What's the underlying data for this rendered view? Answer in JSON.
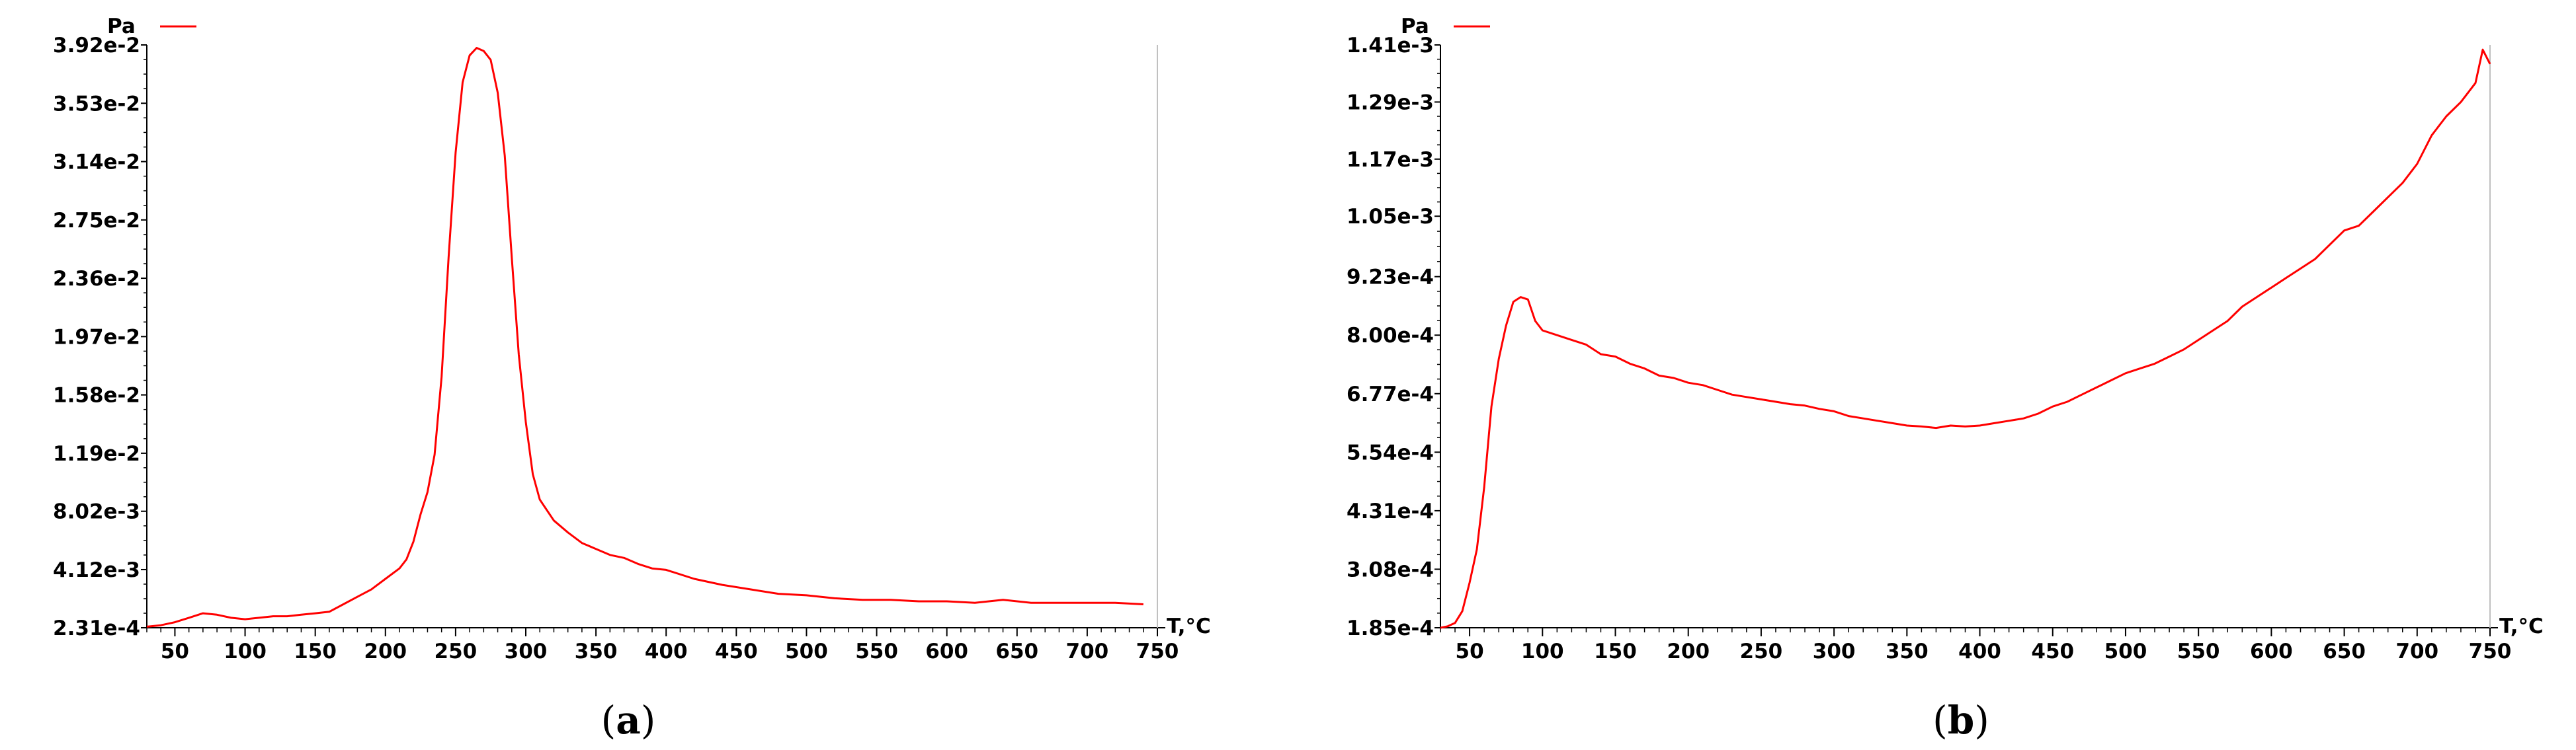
{
  "chart_data": [
    {
      "type": "line",
      "caption_open": "(",
      "caption_letter": "a",
      "caption_close": ")",
      "ylabel": "Pa",
      "xlabel": "T,°C",
      "xlim": [
        30,
        750
      ],
      "ylim": [
        0.000231,
        0.0392
      ],
      "x_ticks": [
        50,
        100,
        150,
        200,
        250,
        300,
        350,
        400,
        450,
        500,
        550,
        600,
        650,
        700,
        750
      ],
      "y_ticks": [
        0.000231,
        0.00412,
        0.00802,
        0.0119,
        0.0158,
        0.0197,
        0.0236,
        0.0275,
        0.0314,
        0.0353,
        0.0392
      ],
      "y_tick_labels": [
        "2.31e-4",
        "4.12e-3",
        "8.02e-3",
        "1.19e-2",
        "1.58e-2",
        "1.97e-2",
        "2.36e-2",
        "2.75e-2",
        "3.14e-2",
        "3.53e-2",
        "3.92e-2"
      ],
      "series": [
        {
          "color": "#ff0000",
          "x": [
            30,
            40,
            50,
            60,
            70,
            80,
            90,
            100,
            110,
            120,
            130,
            140,
            150,
            160,
            170,
            180,
            190,
            200,
            210,
            215,
            220,
            225,
            230,
            235,
            240,
            245,
            250,
            255,
            260,
            265,
            270,
            275,
            280,
            285,
            290,
            295,
            300,
            305,
            310,
            320,
            330,
            340,
            350,
            360,
            370,
            380,
            390,
            400,
            420,
            440,
            460,
            480,
            500,
            520,
            540,
            560,
            580,
            600,
            620,
            640,
            660,
            680,
            700,
            720,
            740
          ],
          "y": [
            0.0003,
            0.0004,
            0.0006,
            0.0009,
            0.0012,
            0.0011,
            0.0009,
            0.0008,
            0.0009,
            0.001,
            0.001,
            0.0011,
            0.0012,
            0.0013,
            0.0018,
            0.0023,
            0.0028,
            0.0035,
            0.0042,
            0.0048,
            0.006,
            0.0078,
            0.0093,
            0.0118,
            0.017,
            0.025,
            0.032,
            0.0367,
            0.0385,
            0.039,
            0.0388,
            0.0382,
            0.036,
            0.0318,
            0.025,
            0.0185,
            0.014,
            0.0105,
            0.0088,
            0.0074,
            0.0066,
            0.0059,
            0.0055,
            0.0051,
            0.0049,
            0.0045,
            0.0042,
            0.0041,
            0.0035,
            0.0031,
            0.0028,
            0.0025,
            0.0024,
            0.0022,
            0.0021,
            0.0021,
            0.002,
            0.002,
            0.0019,
            0.0021,
            0.0019,
            0.0019,
            0.0019,
            0.0019,
            0.0018
          ]
        }
      ]
    },
    {
      "type": "line",
      "caption_open": "(",
      "caption_letter": "b",
      "caption_close": ")",
      "ylabel": "Pa",
      "xlabel": "T,°C",
      "xlim": [
        30,
        750
      ],
      "ylim": [
        0.000185,
        0.00141
      ],
      "x_ticks": [
        50,
        100,
        150,
        200,
        250,
        300,
        350,
        400,
        450,
        500,
        550,
        600,
        650,
        700,
        750
      ],
      "y_ticks": [
        0.000185,
        0.000308,
        0.000431,
        0.000554,
        0.000677,
        0.0008,
        0.000923,
        0.00105,
        0.00117,
        0.00129,
        0.00141
      ],
      "y_tick_labels": [
        "1.85e-4",
        "3.08e-4",
        "4.31e-4",
        "5.54e-4",
        "6.77e-4",
        "8.00e-4",
        "9.23e-4",
        "1.05e-3",
        "1.17e-3",
        "1.29e-3",
        "1.41e-3"
      ],
      "series": [
        {
          "color": "#ff0000",
          "x": [
            30,
            35,
            40,
            45,
            50,
            55,
            60,
            65,
            70,
            75,
            80,
            85,
            90,
            95,
            100,
            110,
            120,
            130,
            140,
            150,
            160,
            170,
            180,
            190,
            200,
            210,
            220,
            230,
            240,
            250,
            260,
            270,
            280,
            290,
            300,
            310,
            320,
            330,
            340,
            350,
            360,
            370,
            380,
            390,
            400,
            410,
            420,
            430,
            440,
            450,
            460,
            470,
            480,
            490,
            500,
            510,
            520,
            530,
            540,
            550,
            560,
            570,
            580,
            590,
            600,
            610,
            620,
            630,
            640,
            650,
            660,
            670,
            680,
            690,
            700,
            710,
            720,
            730,
            740,
            745,
            750
          ],
          "y": [
            0.000185,
            0.000188,
            0.000195,
            0.00022,
            0.00028,
            0.00035,
            0.00048,
            0.00065,
            0.00075,
            0.00082,
            0.00087,
            0.00088,
            0.000875,
            0.00083,
            0.00081,
            0.0008,
            0.00079,
            0.00078,
            0.00076,
            0.000755,
            0.00074,
            0.00073,
            0.000715,
            0.00071,
            0.0007,
            0.000695,
            0.000685,
            0.000675,
            0.00067,
            0.000665,
            0.00066,
            0.000655,
            0.000652,
            0.000645,
            0.00064,
            0.00063,
            0.000625,
            0.00062,
            0.000615,
            0.00061,
            0.000608,
            0.000605,
            0.00061,
            0.000608,
            0.00061,
            0.000615,
            0.00062,
            0.000625,
            0.000635,
            0.00065,
            0.00066,
            0.000675,
            0.00069,
            0.000705,
            0.00072,
            0.00073,
            0.00074,
            0.000755,
            0.00077,
            0.00079,
            0.00081,
            0.00083,
            0.00086,
            0.00088,
            0.0009,
            0.00092,
            0.00094,
            0.00096,
            0.00099,
            0.00102,
            0.00103,
            0.00106,
            0.00109,
            0.00112,
            0.00116,
            0.00122,
            0.00126,
            0.00129,
            0.00133,
            0.0014,
            0.00137
          ]
        }
      ]
    }
  ]
}
